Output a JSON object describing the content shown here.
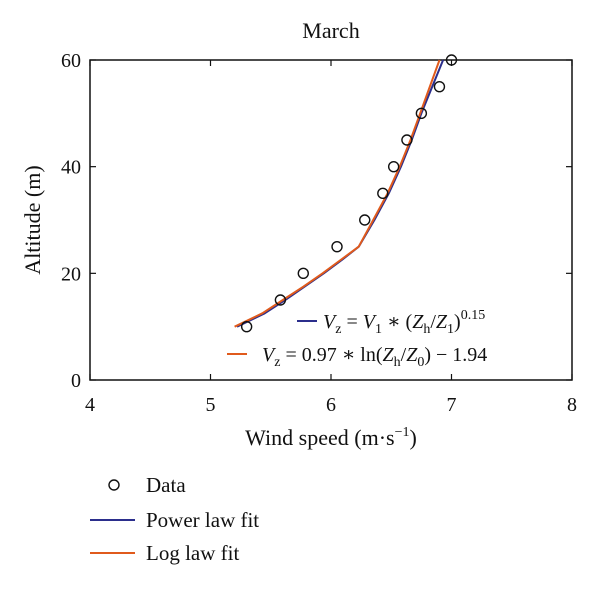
{
  "chart_data": {
    "type": "scatter",
    "title": "March",
    "xlabel": "Wind speed (m·s",
    "xlabel_sup": "−1",
    "xlabel_close": ")",
    "ylabel": "Altitude (m)",
    "xlim": [
      4,
      8
    ],
    "ylim": [
      0,
      60
    ],
    "xticks": [
      4,
      5,
      6,
      7,
      8
    ],
    "yticks": [
      0,
      20,
      40,
      60
    ],
    "grid": false,
    "legend_position": "below",
    "colors": {
      "data": "#111111",
      "power": "#2b2e8c",
      "log": "#e05a1c"
    },
    "series": [
      {
        "name": "Data",
        "kind": "markers",
        "x": [
          5.3,
          5.58,
          5.77,
          6.05,
          6.28,
          6.43,
          6.52,
          6.63,
          6.75,
          6.9,
          7.0
        ],
        "y": [
          10,
          15,
          20,
          25,
          30,
          35,
          40,
          45,
          50,
          55,
          60
        ]
      },
      {
        "name": "Power law fit",
        "kind": "line",
        "x": [
          5.22,
          5.45,
          5.62,
          5.78,
          5.94,
          6.09,
          6.23,
          6.36,
          6.48,
          6.58,
          6.67,
          6.75,
          6.84,
          6.93
        ],
        "y": [
          10,
          12.5,
          15,
          17.5,
          20,
          22.5,
          25,
          30,
          35,
          40,
          45,
          50,
          55,
          60
        ]
      },
      {
        "name": "Log law fit",
        "kind": "line",
        "x": [
          5.2,
          5.43,
          5.6,
          5.77,
          5.93,
          6.08,
          6.23,
          6.35,
          6.47,
          6.57,
          6.66,
          6.74,
          6.82,
          6.9
        ],
        "y": [
          10,
          12.5,
          15,
          17.5,
          20,
          22.5,
          25,
          30,
          35,
          40,
          45,
          50,
          55,
          60
        ]
      }
    ],
    "annotations": {
      "power": {
        "lhs": "V",
        "lhs_sub": "z",
        "eq": " = ",
        "v1": "V",
        "v1_sub": "1",
        "mult": " ∗ (",
        "zh": "Z",
        "zh_sub": "h",
        "slash": "/",
        "z1": "Z",
        "z1_sub": "1",
        "close": ")",
        "exp": "0.15"
      },
      "log": {
        "lhs": "V",
        "lhs_sub": "z",
        "eq": " = 0.97 ∗ ln(",
        "zh": "Z",
        "zh_sub": "h",
        "slash": "/",
        "z0": "Z",
        "z0_sub": "0",
        "tail": ") − 1.94"
      }
    }
  }
}
